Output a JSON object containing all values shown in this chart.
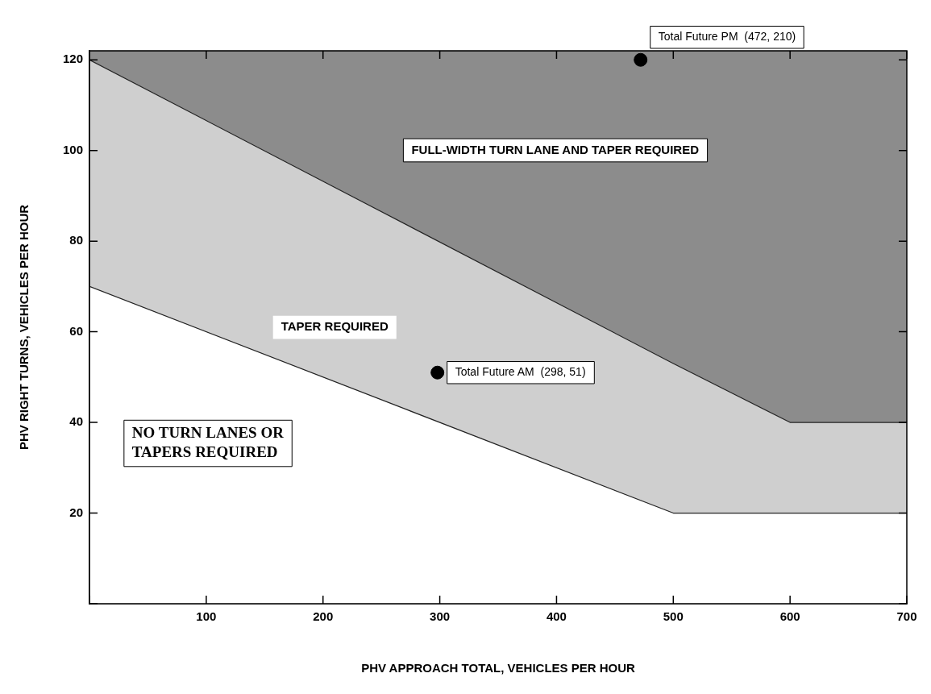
{
  "chart_data": {
    "type": "area",
    "xlabel": "PHV APPROACH TOTAL, VEHICLES PER HOUR",
    "ylabel": "PHV RIGHT TURNS, VEHICLES PER HOUR",
    "xlim": [
      0,
      700
    ],
    "ylim": [
      0,
      122
    ],
    "xticks": [
      {
        "value": 0,
        "label": null
      },
      100,
      200,
      300,
      400,
      500,
      600,
      700
    ],
    "yticks": [
      {
        "value": 0,
        "label": null
      },
      20,
      40,
      60,
      80,
      100,
      120
    ],
    "grid": false,
    "legend": false,
    "stacked": true,
    "series": [
      {
        "color": "#ffffff",
        "x": [
          0,
          500,
          600,
          700
        ],
        "values": [
          70,
          20,
          20,
          20
        ]
      },
      {
        "color": "#cfcfcf",
        "x": [
          0,
          500,
          600,
          700
        ],
        "values": [
          50,
          33,
          20,
          20
        ]
      },
      {
        "color": "#8c8c8c",
        "x": [
          0,
          500,
          600,
          700
        ],
        "values": [
          2,
          69,
          82,
          82
        ]
      },
      {
        "type": "scatter",
        "color": "#000000",
        "marker": "circle",
        "x": [
          298,
          472
        ],
        "values": [
          51,
          120
        ]
      }
    ],
    "annotations": [
      "FULL-WIDTH TURN LANE AND TAPER REQUIRED",
      "TAPER REQUIRED",
      "NO TURN LANES OR TAPERS REQUIRED",
      {
        "text": "Total Future AM  (298, 51)",
        "x": 298,
        "y": 51
      },
      {
        "text": "Total Future PM  (472, 210)",
        "x": 472,
        "y": 120
      }
    ]
  }
}
